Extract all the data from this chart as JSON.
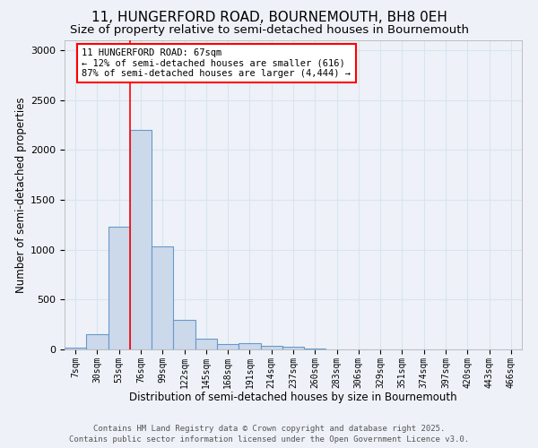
{
  "title_line1": "11, HUNGERFORD ROAD, BOURNEMOUTH, BH8 0EH",
  "title_line2": "Size of property relative to semi-detached houses in Bournemouth",
  "xlabel": "Distribution of semi-detached houses by size in Bournemouth",
  "ylabel": "Number of semi-detached properties",
  "categories": [
    "7sqm",
    "30sqm",
    "53sqm",
    "76sqm",
    "99sqm",
    "122sqm",
    "145sqm",
    "168sqm",
    "191sqm",
    "214sqm",
    "237sqm",
    "260sqm",
    "283sqm",
    "306sqm",
    "329sqm",
    "351sqm",
    "374sqm",
    "397sqm",
    "420sqm",
    "443sqm",
    "466sqm"
  ],
  "values": [
    20,
    150,
    1230,
    2200,
    1030,
    300,
    110,
    55,
    65,
    35,
    25,
    10,
    0,
    0,
    0,
    0,
    0,
    0,
    0,
    0,
    0
  ],
  "bar_color": "#ccd9ea",
  "bar_edge_color": "#6699cc",
  "bar_linewidth": 0.8,
  "vline_color": "red",
  "vline_x": 2.5,
  "annotation_title": "11 HUNGERFORD ROAD: 67sqm",
  "annotation_line2": "← 12% of semi-detached houses are smaller (616)",
  "annotation_line3": "87% of semi-detached houses are larger (4,444) →",
  "annotation_box_color": "white",
  "annotation_border_color": "red",
  "ylim": [
    0,
    3100
  ],
  "yticks": [
    0,
    500,
    1000,
    1500,
    2000,
    2500,
    3000
  ],
  "grid_color": "#d8e4f0",
  "background_color": "#eef2f8",
  "footer_line1": "Contains HM Land Registry data © Crown copyright and database right 2025.",
  "footer_line2": "Contains public sector information licensed under the Open Government Licence v3.0.",
  "title_fontsize": 11,
  "subtitle_fontsize": 9.5,
  "tick_fontsize": 7,
  "label_fontsize": 8.5,
  "annotation_fontsize": 7.5,
  "footer_fontsize": 6.5
}
